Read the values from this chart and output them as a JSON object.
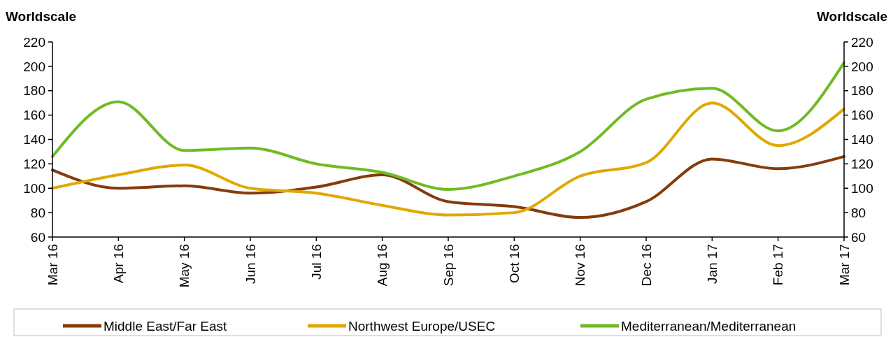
{
  "chart_data": {
    "type": "line",
    "ylabel": "Worldscale",
    "y2label": "Worldscale",
    "categories": [
      "Mar 16",
      "Apr 16",
      "May 16",
      "Jun 16",
      "Jul 16",
      "Aug 16",
      "Sep 16",
      "Oct 16",
      "Nov 16",
      "Dec 16",
      "Jan 17",
      "Feb 17",
      "Mar 17"
    ],
    "series": [
      {
        "name": "Middle East/Far East",
        "color": "#843c0c",
        "values": [
          115,
          100,
          102,
          96,
          101,
          111,
          89,
          85,
          76,
          89,
          124,
          116,
          126
        ]
      },
      {
        "name": "Northwest Europe/USEC",
        "color": "#e0a800",
        "values": [
          100,
          111,
          119,
          100,
          96,
          86,
          78,
          80,
          110,
          121,
          170,
          135,
          165
        ]
      },
      {
        "name": "Mediterranean/Mediterranean",
        "color": "#70bb25",
        "values": [
          126,
          171,
          131,
          133,
          120,
          113,
          99,
          110,
          130,
          173,
          182,
          147,
          203
        ]
      }
    ],
    "ylim": [
      60,
      220
    ],
    "yticks": [
      60,
      80,
      100,
      120,
      140,
      160,
      180,
      200,
      220
    ],
    "y2lim": [
      60,
      220
    ],
    "y2ticks": [
      60,
      80,
      100,
      120,
      140,
      160,
      180,
      200,
      220
    ],
    "grid": false,
    "legend": "bottom",
    "line_style": "solid",
    "marker": "none"
  }
}
